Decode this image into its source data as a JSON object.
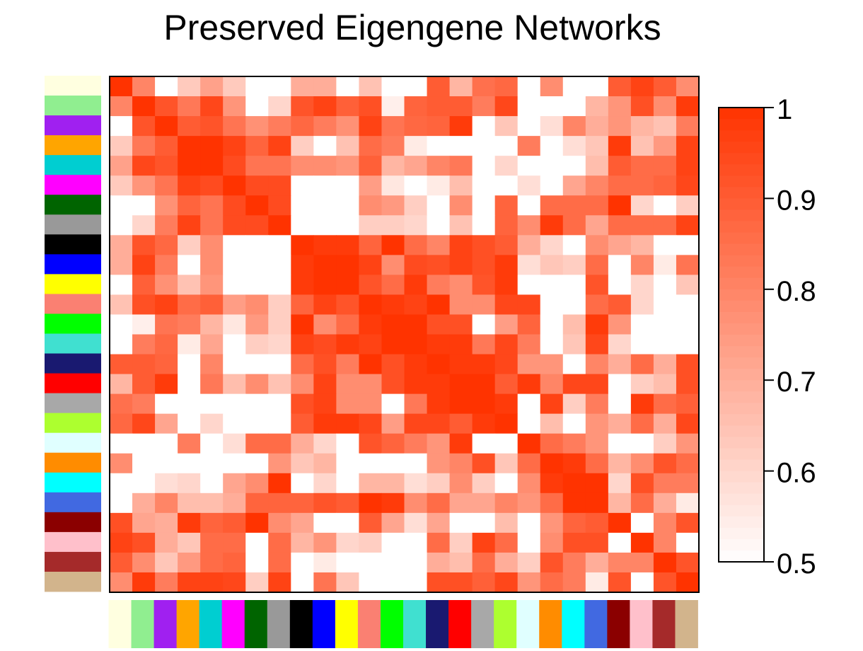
{
  "chart_data": {
    "type": "heatmap",
    "title": "Preserved Eigengene Networks",
    "xlabel": "",
    "ylabel": "",
    "modules": [
      "lightyellow",
      "lightgreen",
      "purple",
      "orange",
      "darkturquoise",
      "magenta",
      "darkgreen",
      "darkgrey",
      "black",
      "blue",
      "yellow",
      "salmon",
      "green",
      "turquoise",
      "midnightblue",
      "red",
      "grey60",
      "greenyellow",
      "lightcyan",
      "darkorange",
      "cyan",
      "royalblue",
      "darkred",
      "pink",
      "brown",
      "tan"
    ],
    "module_colors": [
      "#FFFFE0",
      "#90EE90",
      "#A020F0",
      "#FFA500",
      "#00CED1",
      "#FF00FF",
      "#006400",
      "#999999",
      "#000000",
      "#0000FF",
      "#FFFF00",
      "#FA8072",
      "#00FF00",
      "#40E0D0",
      "#191970",
      "#FF0000",
      "#A8A8A8",
      "#ADFF2F",
      "#E0FFFF",
      "#FF8C00",
      "#00FFFF",
      "#4169E1",
      "#8B0000",
      "#FFC0CB",
      "#A52A2A",
      "#D2B48C"
    ],
    "colorbar": {
      "range": [
        0.5,
        1
      ],
      "ticks": [
        0.5,
        0.6,
        0.7,
        0.8,
        0.9,
        1
      ],
      "tick_labels": [
        "0.5",
        "0.6",
        "0.7",
        "0.8",
        "0.9",
        "1"
      ],
      "low_color": "#FFFFFF",
      "high_color": "#FF3300"
    },
    "matrix": [
      [
        1,
        0.8,
        0.5,
        0.63,
        0.73,
        0.63,
        0.5,
        0.5,
        0.7,
        0.7,
        0.5,
        0.65,
        0.5,
        0.5,
        0.9,
        0.68,
        0.85,
        0.87,
        0.5,
        0.78,
        0.5,
        0.5,
        0.9,
        0.96,
        0.9,
        0.78
      ],
      [
        0.8,
        1,
        0.92,
        0.83,
        0.95,
        0.76,
        0.5,
        0.6,
        0.92,
        0.96,
        0.89,
        0.93,
        0.54,
        0.88,
        0.9,
        0.9,
        0.82,
        0.95,
        0.5,
        0.5,
        0.5,
        0.68,
        0.76,
        0.93,
        0.78,
        0.98
      ],
      [
        0.5,
        0.92,
        1,
        0.9,
        0.92,
        0.84,
        0.77,
        0.82,
        0.87,
        0.82,
        0.77,
        0.96,
        0.84,
        0.87,
        0.88,
        0.98,
        0.5,
        0.64,
        0.5,
        0.58,
        0.8,
        0.7,
        0.76,
        0.68,
        0.65,
        0.82
      ],
      [
        0.63,
        0.83,
        0.9,
        1,
        1,
        0.96,
        0.88,
        0.96,
        0.62,
        0.5,
        0.65,
        0.86,
        0.82,
        0.55,
        0.5,
        0.5,
        0.5,
        0.5,
        0.82,
        0.5,
        0.58,
        0.64,
        0.98,
        0.65,
        0.75,
        0.96
      ],
      [
        0.73,
        0.95,
        0.92,
        1,
        1,
        0.94,
        0.84,
        0.84,
        0.78,
        0.78,
        0.76,
        0.89,
        0.68,
        0.72,
        0.8,
        0.83,
        0.5,
        0.6,
        0.5,
        0.5,
        0.5,
        0.66,
        0.9,
        0.86,
        0.86,
        0.96
      ],
      [
        0.63,
        0.76,
        0.84,
        0.96,
        0.94,
        1,
        0.94,
        0.94,
        0.5,
        0.5,
        0.5,
        0.74,
        0.56,
        0.5,
        0.55,
        0.66,
        0.5,
        0.5,
        0.58,
        0.5,
        0.72,
        0.8,
        0.86,
        0.86,
        0.88,
        0.95
      ],
      [
        0.5,
        0.5,
        0.77,
        0.88,
        0.84,
        0.94,
        1,
        0.94,
        0.5,
        0.5,
        0.5,
        0.78,
        0.75,
        0.62,
        0.5,
        0.78,
        0.5,
        0.88,
        0.5,
        0.86,
        0.86,
        0.86,
        1,
        0.6,
        0.5,
        0.62
      ],
      [
        0.5,
        0.6,
        0.82,
        0.96,
        0.84,
        0.94,
        0.94,
        1,
        0.5,
        0.5,
        0.5,
        0.62,
        0.62,
        0.6,
        0.5,
        0.65,
        0.5,
        0.88,
        0.78,
        0.98,
        0.86,
        0.72,
        0.86,
        0.86,
        0.86,
        0.96
      ],
      [
        0.7,
        0.92,
        0.87,
        0.62,
        0.78,
        0.5,
        0.5,
        0.5,
        1,
        0.98,
        0.98,
        0.88,
        1,
        0.86,
        0.8,
        0.96,
        0.93,
        0.9,
        0.7,
        0.6,
        0.5,
        0.78,
        0.72,
        0.68,
        0.5,
        0.5
      ],
      [
        0.7,
        0.96,
        0.82,
        0.5,
        0.78,
        0.5,
        0.5,
        0.5,
        0.98,
        1,
        1,
        0.96,
        0.78,
        0.94,
        0.93,
        0.96,
        0.93,
        0.98,
        0.58,
        0.64,
        0.62,
        0.86,
        0.5,
        0.8,
        0.55,
        0.84
      ],
      [
        0.5,
        0.89,
        0.77,
        0.65,
        0.76,
        0.5,
        0.5,
        0.5,
        0.98,
        1,
        1,
        0.92,
        0.86,
        0.98,
        0.82,
        0.78,
        0.92,
        0.98,
        0.5,
        0.5,
        0.5,
        0.92,
        0.5,
        0.6,
        0.5,
        0.64
      ],
      [
        0.65,
        0.93,
        0.96,
        0.86,
        0.89,
        0.74,
        0.78,
        0.62,
        0.88,
        0.96,
        0.92,
        1,
        0.98,
        0.96,
        1,
        0.78,
        0.78,
        0.95,
        0.95,
        0.5,
        0.5,
        0.86,
        0.9,
        0.6,
        0.5,
        0.5
      ],
      [
        0.5,
        0.54,
        0.84,
        0.82,
        0.68,
        0.56,
        0.75,
        0.62,
        1,
        0.78,
        0.86,
        0.98,
        1,
        1,
        0.93,
        0.93,
        0.5,
        0.74,
        0.88,
        0.5,
        0.66,
        0.98,
        0.76,
        0.5,
        0.5,
        0.5
      ],
      [
        0.5,
        0.82,
        0.87,
        0.55,
        0.72,
        0.5,
        0.62,
        0.6,
        0.96,
        0.94,
        0.98,
        0.96,
        1,
        1,
        0.98,
        0.98,
        0.83,
        0.95,
        0.82,
        0.5,
        0.64,
        0.95,
        0.6,
        0.5,
        0.5,
        0.5
      ],
      [
        0.9,
        0.9,
        0.88,
        0.5,
        0.8,
        0.5,
        0.5,
        0.5,
        0.86,
        0.93,
        0.82,
        1,
        0.93,
        0.98,
        1,
        0.98,
        0.98,
        0.95,
        0.76,
        0.76,
        0.5,
        0.8,
        0.7,
        0.86,
        0.7,
        0.93
      ],
      [
        0.68,
        0.9,
        0.98,
        0.5,
        0.83,
        0.66,
        0.78,
        0.65,
        0.78,
        0.96,
        0.78,
        0.78,
        0.93,
        0.98,
        0.98,
        1,
        1,
        0.9,
        0.98,
        0.8,
        0.95,
        0.95,
        0.5,
        0.62,
        0.66,
        0.93
      ],
      [
        0.85,
        0.82,
        0.5,
        0.5,
        0.5,
        0.5,
        0.5,
        0.5,
        0.93,
        0.96,
        0.78,
        0.78,
        0.5,
        0.83,
        0.98,
        1,
        1,
        0.98,
        0.5,
        0.96,
        0.62,
        0.82,
        0.5,
        0.98,
        0.86,
        0.89
      ],
      [
        0.87,
        0.95,
        0.72,
        0.5,
        0.6,
        0.5,
        0.5,
        0.5,
        0.9,
        0.98,
        0.98,
        0.95,
        0.74,
        0.95,
        0.95,
        0.9,
        0.98,
        1,
        0.5,
        0.66,
        0.5,
        0.76,
        0.7,
        0.86,
        0.7,
        0.95
      ],
      [
        0.5,
        0.5,
        0.5,
        0.82,
        0.5,
        0.58,
        0.86,
        0.86,
        0.7,
        0.6,
        0.5,
        0.92,
        0.88,
        0.82,
        0.76,
        0.98,
        0.5,
        0.5,
        1,
        0.86,
        0.82,
        0.76,
        0.5,
        0.5,
        0.62,
        0.76
      ],
      [
        0.78,
        0.5,
        0.5,
        0.5,
        0.5,
        0.5,
        0.5,
        0.76,
        0.64,
        0.68,
        0.5,
        0.5,
        0.5,
        0.5,
        0.76,
        0.8,
        0.93,
        0.64,
        0.86,
        1,
        0.98,
        0.86,
        0.68,
        0.78,
        0.92,
        0.86
      ],
      [
        0.5,
        0.5,
        0.58,
        0.6,
        0.5,
        0.72,
        0.78,
        1,
        0.5,
        0.6,
        0.5,
        0.68,
        0.68,
        0.58,
        0.62,
        0.78,
        0.62,
        0.5,
        0.78,
        0.98,
        1,
        1,
        0.6,
        0.93,
        0.82,
        0.82
      ],
      [
        0.5,
        0.7,
        0.8,
        0.66,
        0.66,
        0.7,
        0.88,
        0.88,
        0.88,
        0.92,
        0.9,
        1,
        0.98,
        0.78,
        0.86,
        0.72,
        0.72,
        0.8,
        0.76,
        0.86,
        1,
        1,
        0.68,
        0.86,
        0.7,
        0.55
      ],
      [
        0.93,
        0.72,
        0.7,
        0.98,
        0.88,
        0.9,
        1,
        0.78,
        0.72,
        0.5,
        0.5,
        0.9,
        0.72,
        0.58,
        0.72,
        0.5,
        0.5,
        0.66,
        0.5,
        0.76,
        0.88,
        0.9,
        1,
        0.5,
        0.8,
        0.92
      ],
      [
        0.96,
        0.93,
        0.7,
        0.64,
        0.86,
        0.86,
        0.5,
        0.86,
        0.68,
        0.76,
        0.6,
        0.62,
        0.5,
        0.5,
        0.86,
        0.62,
        0.96,
        0.86,
        0.5,
        0.78,
        0.93,
        0.93,
        0.5,
        1,
        0.8,
        0.5
      ],
      [
        0.9,
        0.78,
        0.64,
        0.75,
        0.86,
        0.88,
        0.5,
        0.86,
        0.5,
        0.55,
        0.5,
        0.5,
        0.5,
        0.5,
        0.7,
        0.66,
        0.86,
        0.7,
        0.62,
        0.92,
        0.82,
        0.7,
        0.8,
        0.8,
        1,
        0.92
      ],
      [
        0.78,
        0.98,
        0.82,
        0.96,
        0.96,
        0.95,
        0.62,
        0.96,
        0.5,
        0.84,
        0.64,
        0.5,
        0.5,
        0.5,
        0.93,
        0.93,
        0.89,
        0.95,
        0.76,
        0.86,
        0.82,
        0.55,
        0.92,
        0.5,
        0.92,
        1
      ]
    ]
  }
}
